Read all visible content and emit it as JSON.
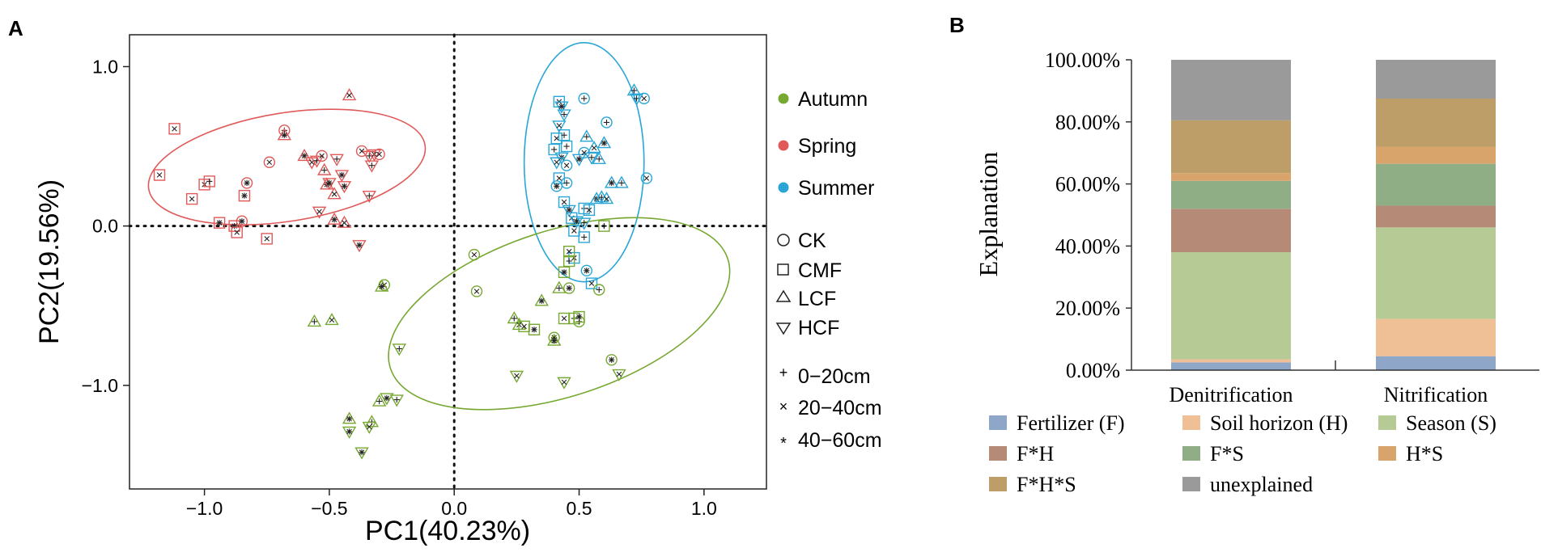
{
  "chart_data": [
    {
      "panel_label": "A",
      "type": "scatter",
      "xlabel": "PC1(40.23%)",
      "ylabel": "PC2(19.56%)",
      "xlim": [
        -1.3,
        1.25
      ],
      "ylim": [
        -1.65,
        1.2
      ],
      "x_ticks": [
        -1.0,
        -0.5,
        0.0,
        0.5,
        1.0
      ],
      "x_tick_labels": [
        "−1.0",
        "−0.5",
        "0.0",
        "0.5",
        "1.0"
      ],
      "y_ticks": [
        1.0,
        0.0,
        -1.0
      ],
      "y_tick_labels": [
        "1.0",
        "0.0",
        "−1.0"
      ],
      "zero_lines": true,
      "legend_seasons": [
        {
          "label": "Autumn",
          "color": "#77a832"
        },
        {
          "label": "Spring",
          "color": "#e05a5a"
        },
        {
          "label": "Summer",
          "color": "#2aa6d6"
        }
      ],
      "legend_treatments": [
        {
          "label": "CK",
          "shape": "circle"
        },
        {
          "label": "CMF",
          "shape": "square"
        },
        {
          "label": "LCF",
          "shape": "triangle-up"
        },
        {
          "label": "HCF",
          "shape": "triangle-down"
        }
      ],
      "legend_depths": [
        {
          "label": "0−20cm",
          "glyph": "+"
        },
        {
          "label": "20−40cm",
          "glyph": "×"
        },
        {
          "label": "40−60cm",
          "glyph": "*"
        }
      ],
      "ellipses": [
        {
          "group": "Spring",
          "cx": -0.67,
          "cy": 0.37,
          "rx": 0.56,
          "ry": 0.34,
          "angle": 9
        },
        {
          "group": "Summer",
          "cx": 0.52,
          "cy": 0.4,
          "rx": 0.24,
          "ry": 0.75,
          "angle": 0
        },
        {
          "group": "Autumn",
          "cx": 0.42,
          "cy": -0.55,
          "rx": 0.71,
          "ry": 0.52,
          "angle": 18
        }
      ],
      "series": [
        {
          "name": "Spring",
          "color": "#e05a5a",
          "points": [
            [
              -1.18,
              0.32,
              "square",
              "x"
            ],
            [
              -1.12,
              0.61,
              "square",
              "x"
            ],
            [
              -1.05,
              0.17,
              "square",
              "x"
            ],
            [
              -1.0,
              0.26,
              "square",
              "x"
            ],
            [
              -0.98,
              0.28,
              "square",
              "+"
            ],
            [
              -0.94,
              0.02,
              "square",
              "*"
            ],
            [
              -0.88,
              0.0,
              "square",
              "*"
            ],
            [
              -0.87,
              -0.04,
              "square",
              "x"
            ],
            [
              -0.85,
              0.03,
              "circle",
              "*"
            ],
            [
              -0.84,
              0.19,
              "square",
              "*"
            ],
            [
              -0.83,
              0.27,
              "circle",
              "*"
            ],
            [
              -0.75,
              -0.08,
              "square",
              "x"
            ],
            [
              -0.74,
              0.4,
              "circle",
              "x"
            ],
            [
              -0.68,
              0.6,
              "circle",
              "+"
            ],
            [
              -0.68,
              0.57,
              "triangle-up",
              "*"
            ],
            [
              -0.6,
              0.44,
              "triangle-up",
              "*"
            ],
            [
              -0.57,
              0.4,
              "triangle-down",
              "x"
            ],
            [
              -0.55,
              0.41,
              "triangle-down",
              "+"
            ],
            [
              -0.53,
              0.44,
              "circle",
              "x"
            ],
            [
              -0.52,
              0.35,
              "triangle-up",
              "+"
            ],
            [
              -0.51,
              0.26,
              "triangle-up",
              "*"
            ],
            [
              -0.5,
              0.27,
              "triangle-down",
              "*"
            ],
            [
              -0.48,
              0.2,
              "triangle-up",
              "x"
            ],
            [
              -0.54,
              0.09,
              "triangle-down",
              "x"
            ],
            [
              -0.47,
              0.42,
              "triangle-down",
              "+"
            ],
            [
              -0.45,
              0.32,
              "triangle-down",
              "*"
            ],
            [
              -0.44,
              0.25,
              "triangle-down",
              "*"
            ],
            [
              -0.42,
              0.82,
              "triangle-up",
              "x"
            ],
            [
              -0.48,
              0.04,
              "triangle-up",
              "*"
            ],
            [
              -0.44,
              0.02,
              "triangle-up",
              "x"
            ],
            [
              -0.37,
              0.47,
              "circle",
              "x"
            ],
            [
              -0.34,
              0.44,
              "triangle-down",
              "+"
            ],
            [
              -0.32,
              0.45,
              "triangle-down",
              "x"
            ],
            [
              -0.3,
              0.45,
              "circle",
              "x"
            ],
            [
              -0.33,
              0.38,
              "triangle-down",
              "+"
            ],
            [
              -0.34,
              0.19,
              "triangle-down",
              "+"
            ],
            [
              -0.38,
              -0.12,
              "triangle-down",
              "*"
            ]
          ]
        },
        {
          "name": "Summer",
          "color": "#2aa6d6",
          "points": [
            [
              0.42,
              0.78,
              "square",
              "x"
            ],
            [
              0.43,
              0.75,
              "triangle-down",
              "*"
            ],
            [
              0.44,
              0.7,
              "triangle-down",
              "+"
            ],
            [
              0.42,
              0.63,
              "triangle-down",
              "x"
            ],
            [
              0.41,
              0.55,
              "square",
              "x"
            ],
            [
              0.44,
              0.57,
              "square",
              "+"
            ],
            [
              0.4,
              0.48,
              "square",
              "+"
            ],
            [
              0.45,
              0.5,
              "square",
              "+"
            ],
            [
              0.43,
              0.43,
              "triangle-down",
              "*"
            ],
            [
              0.41,
              0.4,
              "triangle-down",
              "x"
            ],
            [
              0.45,
              0.38,
              "circle",
              "x"
            ],
            [
              0.5,
              0.42,
              "triangle-down",
              "*"
            ],
            [
              0.52,
              0.46,
              "circle",
              "x"
            ],
            [
              0.53,
              0.56,
              "triangle-up",
              "+"
            ],
            [
              0.56,
              0.49,
              "triangle-up",
              "x"
            ],
            [
              0.55,
              0.43,
              "triangle-down",
              "+"
            ],
            [
              0.52,
              0.8,
              "circle",
              "+"
            ],
            [
              0.61,
              0.65,
              "circle",
              "+"
            ],
            [
              0.6,
              0.52,
              "triangle-up",
              "*"
            ],
            [
              0.58,
              0.42,
              "triangle-up",
              "+"
            ],
            [
              0.42,
              0.3,
              "square",
              "x"
            ],
            [
              0.41,
              0.25,
              "circle",
              "*"
            ],
            [
              0.45,
              0.27,
              "circle",
              "+"
            ],
            [
              0.44,
              0.15,
              "square",
              "x"
            ],
            [
              0.46,
              0.1,
              "triangle-down",
              "*"
            ],
            [
              0.47,
              0.05,
              "square",
              "x"
            ],
            [
              0.49,
              0.03,
              "triangle-down",
              "*"
            ],
            [
              0.52,
              0.02,
              "triangle-down",
              "+"
            ],
            [
              0.52,
              0.11,
              "square",
              "+"
            ],
            [
              0.54,
              0.1,
              "square",
              "x"
            ],
            [
              0.57,
              0.17,
              "triangle-up",
              "*"
            ],
            [
              0.59,
              0.18,
              "triangle-up",
              "+"
            ],
            [
              0.61,
              0.17,
              "triangle-up",
              "x"
            ],
            [
              0.63,
              0.27,
              "triangle-up",
              "*"
            ],
            [
              0.67,
              0.27,
              "triangle-up",
              "+"
            ],
            [
              0.72,
              0.85,
              "triangle-up",
              "+"
            ],
            [
              0.73,
              0.8,
              "triangle-down",
              "+"
            ],
            [
              0.76,
              0.8,
              "circle",
              "x"
            ],
            [
              0.77,
              0.3,
              "circle",
              "x"
            ],
            [
              0.48,
              -0.03,
              "square",
              "x"
            ],
            [
              0.52,
              -0.07,
              "square",
              "+"
            ],
            [
              0.48,
              -0.2,
              "square",
              "x"
            ],
            [
              0.53,
              -0.28,
              "circle",
              "*"
            ],
            [
              0.55,
              -0.36,
              "square",
              "x"
            ]
          ]
        },
        {
          "name": "Autumn",
          "color": "#77a832",
          "points": [
            [
              0.08,
              -0.18,
              "circle",
              "x"
            ],
            [
              0.09,
              -0.41,
              "circle",
              "x"
            ],
            [
              0.24,
              -0.58,
              "triangle-up",
              "+"
            ],
            [
              0.26,
              -0.62,
              "triangle-up",
              "x"
            ],
            [
              0.28,
              -0.63,
              "square",
              "x"
            ],
            [
              0.32,
              -0.65,
              "square",
              "*"
            ],
            [
              0.35,
              -0.47,
              "triangle-up",
              "*"
            ],
            [
              0.42,
              -0.39,
              "triangle-up",
              "+"
            ],
            [
              0.46,
              -0.39,
              "circle",
              "*"
            ],
            [
              0.44,
              -0.29,
              "square",
              "*"
            ],
            [
              0.46,
              -0.22,
              "square",
              "+"
            ],
            [
              0.46,
              -0.16,
              "square",
              "x"
            ],
            [
              0.44,
              -0.58,
              "square",
              "x"
            ],
            [
              0.48,
              -0.58,
              "square",
              "+"
            ],
            [
              0.5,
              -0.6,
              "circle",
              "+"
            ],
            [
              0.5,
              -0.57,
              "square",
              "*"
            ],
            [
              0.4,
              -0.7,
              "circle",
              "*"
            ],
            [
              0.4,
              -0.72,
              "triangle-up",
              "*"
            ],
            [
              0.58,
              -0.4,
              "circle",
              "+"
            ],
            [
              0.63,
              -0.84,
              "circle",
              "*"
            ],
            [
              0.66,
              -0.93,
              "triangle-down",
              "x"
            ],
            [
              0.25,
              -0.94,
              "triangle-down",
              "x"
            ],
            [
              0.44,
              -0.98,
              "triangle-down",
              "x"
            ],
            [
              -0.28,
              -0.37,
              "circle",
              "x"
            ],
            [
              -0.29,
              -0.38,
              "triangle-up",
              "*"
            ],
            [
              -0.56,
              -0.6,
              "triangle-up",
              "+"
            ],
            [
              -0.49,
              -0.59,
              "triangle-up",
              "x"
            ],
            [
              -0.22,
              -0.77,
              "triangle-down",
              "+"
            ],
            [
              -0.42,
              -1.21,
              "triangle-up",
              "*"
            ],
            [
              -0.33,
              -1.23,
              "triangle-up",
              "+"
            ],
            [
              -0.3,
              -1.1,
              "triangle-up",
              "+"
            ],
            [
              -0.27,
              -1.08,
              "triangle-down",
              "*"
            ],
            [
              -0.23,
              -1.09,
              "triangle-down",
              "+"
            ],
            [
              -0.42,
              -1.29,
              "triangle-down",
              "*"
            ],
            [
              -0.34,
              -1.26,
              "triangle-down",
              "x"
            ],
            [
              -0.37,
              -1.42,
              "triangle-down",
              "*"
            ],
            [
              0.6,
              0.0,
              "square",
              "+"
            ]
          ]
        }
      ]
    },
    {
      "panel_label": "B",
      "type": "bar",
      "stacked": true,
      "ylabel": "Explanation",
      "categories": [
        "Denitrification",
        "Nitrification"
      ],
      "y_ticks": [
        0,
        20,
        40,
        60,
        80,
        100
      ],
      "y_tick_labels": [
        "0.00%",
        "20.00%",
        "40.00%",
        "60.00%",
        "80.00%",
        "100.00%"
      ],
      "ylim": [
        0,
        100
      ],
      "series": [
        {
          "name": "Fertilizer (F)",
          "color": "#8ea7c9",
          "values": [
            2.5,
            4.5
          ]
        },
        {
          "name": "Soil horizon (H)",
          "color": "#efbf96",
          "values": [
            1.0,
            12.0
          ]
        },
        {
          "name": "Season (S)",
          "color": "#b6ca95",
          "values": [
            34.5,
            29.5
          ]
        },
        {
          "name": "F*H",
          "color": "#b58b77",
          "values": [
            14.0,
            7.0
          ]
        },
        {
          "name": "F*S",
          "color": "#8fae86",
          "values": [
            9.0,
            13.5
          ]
        },
        {
          "name": "H*S",
          "color": "#d8a46c",
          "values": [
            2.5,
            5.5
          ]
        },
        {
          "name": "F*H*S",
          "color": "#bd9e68",
          "values": [
            17.0,
            15.5
          ]
        },
        {
          "name": "unexplained",
          "color": "#9a9a9a",
          "values": [
            19.5,
            12.5
          ]
        }
      ]
    }
  ]
}
